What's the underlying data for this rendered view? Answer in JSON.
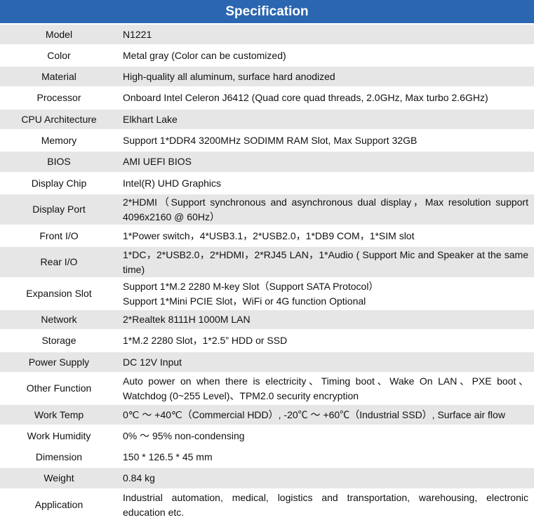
{
  "header": {
    "title": "Specification",
    "color": "#2b66b0"
  },
  "rows": [
    {
      "label": "Model",
      "value": "N1221"
    },
    {
      "label": "Color",
      "value": "Metal gray (Color can be customized)"
    },
    {
      "label": "Material",
      "value": "High-quality all aluminum, surface hard anodized"
    },
    {
      "label": "Processor",
      "value": "Onboard Intel Celeron J6412 (Quad core quad threads, 2.0GHz, Max turbo 2.6GHz)"
    },
    {
      "label": "CPU Architecture",
      "value": "Elkhart Lake"
    },
    {
      "label": "Memory",
      "value": "Support 1*DDR4 3200MHz SODIMM RAM Slot, Max Support 32GB"
    },
    {
      "label": "BIOS",
      "value": "AMI UEFI BIOS"
    },
    {
      "label": "Display Chip",
      "value": "Intel(R) UHD Graphics"
    },
    {
      "label": "Display Port",
      "value": "2*HDMI（Support synchronous and asynchronous dual display，Max resolution support 4096x2160 @ 60Hz）"
    },
    {
      "label": "Front I/O",
      "value": "1*Power switch，4*USB3.1，2*USB2.0，1*DB9 COM，1*SIM slot"
    },
    {
      "label": "Rear I/O",
      "value": "1*DC，2*USB2.0，2*HDMI，2*RJ45 LAN，1*Audio ( Support Mic and Speaker at the same time)"
    },
    {
      "label": "Expansion Slot",
      "value": "Support 1*M.2 2280 M-key Slot（Support SATA Protocol）\nSupport 1*Mini PCIE Slot，WiFi or 4G function Optional"
    },
    {
      "label": "Network",
      "value": "2*Realtek 8111H 1000M LAN"
    },
    {
      "label": "Storage",
      "value": "1*M.2 2280 Slot，1*2.5” HDD or SSD"
    },
    {
      "label": "Power Supply",
      "value": "DC 12V Input"
    },
    {
      "label": "Other Function",
      "value": "Auto power on when there is electricity、Timing boot、Wake On LAN、PXE boot、Watchdog (0~255 Level)、TPM2.0 security encryption"
    },
    {
      "label": "Work Temp",
      "value": "0℃ ～ +40℃（Commercial HDD）, -20℃ ～ +60℃（Industrial SSD）, Surface air flow"
    },
    {
      "label": "Work Humidity",
      "value": "0% ～ 95% non-condensing"
    },
    {
      "label": "Dimension",
      "value": "150 * 126.5 * 45 mm"
    },
    {
      "label": "Weight",
      "value": "0.84 kg"
    },
    {
      "label": "Application",
      "value": "Industrial automation, medical, logistics and transportation, warehousing, electronic education etc."
    }
  ]
}
